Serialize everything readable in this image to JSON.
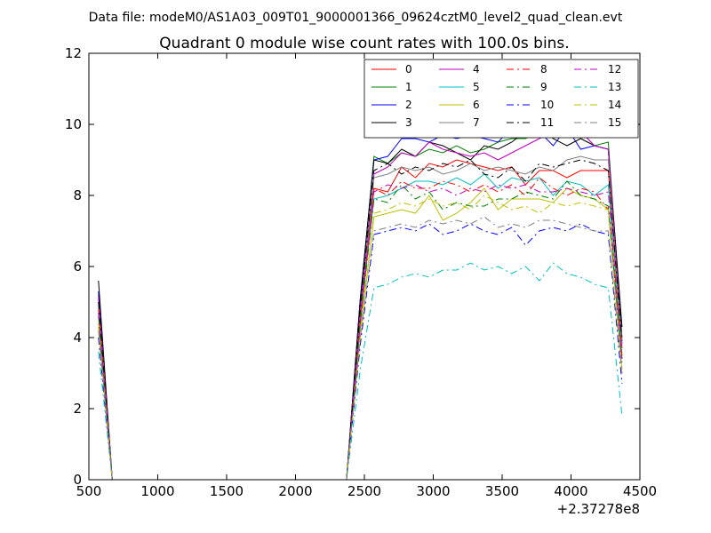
{
  "header": {
    "supertitle": "Data file: modeM0/AS1A03_009T01_9000001366_09624cztM0_level2_quad_clean.evt"
  },
  "chart_data": {
    "type": "line",
    "title": "Quadrant 0 module wise count rates with 100.0s bins.",
    "xlabel": "",
    "ylabel": "",
    "x_offset_label": "+2.37278e8",
    "xlim": [
      500,
      4500
    ],
    "ylim": [
      0,
      12
    ],
    "xticks": [
      500,
      1000,
      1500,
      2000,
      2500,
      3000,
      3500,
      4000,
      4500
    ],
    "yticks": [
      0,
      2,
      4,
      6,
      8,
      10,
      12
    ],
    "grid": false,
    "legend_position": "top-right",
    "legend_columns": 4,
    "x": [
      570,
      670,
      2370,
      2470,
      2570,
      2670,
      2770,
      2870,
      2970,
      3070,
      3170,
      3270,
      3370,
      3470,
      3570,
      3670,
      3770,
      3870,
      3970,
      4070,
      4170,
      4270,
      4370
    ],
    "series": [
      {
        "name": "0",
        "color": "#ff0000",
        "dash": "solid",
        "values": [
          5.2,
          0,
          0,
          4.5,
          8.2,
          8.1,
          8.8,
          8.5,
          8.9,
          8.8,
          9.0,
          8.9,
          8.8,
          8.7,
          8.8,
          8.3,
          8.7,
          8.7,
          8.5,
          8.7,
          8.7,
          8.7,
          3.7
        ]
      },
      {
        "name": "1",
        "color": "#008000",
        "dash": "solid",
        "values": [
          5.0,
          0,
          0,
          5.0,
          9.1,
          8.9,
          9.2,
          9.1,
          9.3,
          9.2,
          9.4,
          9.2,
          9.3,
          9.5,
          9.6,
          9.6,
          9.8,
          9.8,
          9.7,
          9.8,
          9.4,
          9.5,
          4.0
        ]
      },
      {
        "name": "2",
        "color": "#0000ff",
        "dash": "solid",
        "values": [
          5.3,
          0,
          0,
          5.1,
          9.0,
          9.1,
          9.6,
          9.6,
          9.5,
          9.7,
          9.6,
          9.7,
          9.6,
          9.5,
          9.9,
          9.7,
          9.8,
          9.4,
          9.9,
          9.3,
          9.4,
          9.3,
          3.9
        ]
      },
      {
        "name": "3",
        "color": "#000000",
        "dash": "solid",
        "values": [
          5.6,
          0,
          0,
          5.1,
          9.0,
          8.9,
          9.3,
          9.1,
          9.5,
          9.4,
          9.2,
          9.0,
          9.4,
          9.3,
          9.5,
          9.8,
          9.9,
          9.6,
          9.4,
          9.6,
          9.4,
          9.3,
          4.3
        ]
      },
      {
        "name": "4",
        "color": "#bf00bf",
        "dash": "solid",
        "values": [
          5.1,
          0,
          0,
          4.8,
          8.6,
          8.8,
          9.2,
          9.1,
          9.5,
          9.3,
          9.2,
          9.1,
          9.2,
          9.0,
          9.2,
          9.4,
          9.6,
          9.8,
          9.7,
          9.8,
          9.4,
          9.3,
          3.8
        ]
      },
      {
        "name": "5",
        "color": "#00bfbf",
        "dash": "solid",
        "values": [
          4.9,
          0,
          0,
          4.6,
          7.9,
          8.0,
          8.2,
          8.4,
          8.4,
          8.3,
          8.5,
          8.3,
          8.6,
          8.2,
          8.5,
          8.4,
          8.5,
          8.0,
          8.4,
          8.3,
          8.0,
          8.3,
          3.4
        ]
      },
      {
        "name": "6",
        "color": "#bfbf00",
        "dash": "solid",
        "values": [
          4.4,
          0,
          0,
          4.2,
          7.4,
          7.5,
          7.6,
          7.5,
          8.0,
          7.3,
          7.5,
          7.8,
          8.2,
          7.6,
          7.9,
          7.9,
          7.9,
          7.8,
          8.2,
          8.0,
          7.9,
          7.6,
          3.1
        ]
      },
      {
        "name": "7",
        "color": "#808080",
        "dash": "solid",
        "values": [
          5.0,
          0,
          0,
          4.6,
          8.5,
          8.6,
          8.8,
          8.7,
          8.8,
          8.6,
          8.7,
          8.9,
          8.7,
          8.8,
          8.7,
          8.6,
          8.8,
          8.7,
          9.0,
          9.1,
          9.0,
          9.0,
          3.8
        ]
      },
      {
        "name": "8",
        "color": "#ff0000",
        "dash": "dashdot",
        "values": [
          4.8,
          0,
          0,
          4.5,
          8.2,
          8.0,
          8.4,
          8.2,
          8.2,
          8.4,
          8.3,
          8.1,
          8.3,
          8.1,
          8.3,
          8.0,
          8.5,
          8.2,
          8.0,
          8.2,
          8.1,
          7.6,
          3.5
        ]
      },
      {
        "name": "9",
        "color": "#008000",
        "dash": "dashdot",
        "values": [
          4.6,
          0,
          0,
          4.4,
          7.9,
          7.8,
          8.3,
          7.9,
          8.1,
          7.6,
          7.8,
          7.7,
          7.7,
          7.9,
          7.9,
          8.1,
          8.0,
          7.9,
          8.4,
          8.0,
          7.9,
          7.7,
          3.3
        ]
      },
      {
        "name": "10",
        "color": "#0000ff",
        "dash": "dashdot",
        "values": [
          4.0,
          0,
          0,
          3.8,
          6.9,
          7.0,
          7.1,
          7.0,
          7.2,
          6.9,
          7.0,
          7.2,
          7.0,
          6.9,
          7.1,
          6.6,
          7.0,
          7.1,
          7.0,
          7.2,
          7.0,
          6.9,
          2.7
        ]
      },
      {
        "name": "11",
        "color": "#000000",
        "dash": "dashdot",
        "values": [
          5.0,
          0,
          0,
          4.8,
          8.7,
          8.9,
          8.6,
          8.8,
          8.7,
          8.9,
          8.8,
          9.0,
          8.6,
          8.5,
          8.8,
          8.4,
          8.9,
          8.8,
          8.9,
          9.0,
          8.9,
          8.7,
          3.9
        ]
      },
      {
        "name": "12",
        "color": "#bf00bf",
        "dash": "dashdot",
        "values": [
          4.7,
          0,
          0,
          4.4,
          8.1,
          8.3,
          8.2,
          8.3,
          8.1,
          8.2,
          8.0,
          8.2,
          8.1,
          8.3,
          8.2,
          8.3,
          8.1,
          8.1,
          8.2,
          8.1,
          8.0,
          8.1,
          3.4
        ]
      },
      {
        "name": "13",
        "color": "#00bfbf",
        "dash": "dashdot",
        "values": [
          3.6,
          0,
          0,
          3.1,
          5.4,
          5.5,
          5.7,
          5.8,
          5.7,
          5.9,
          5.9,
          6.1,
          5.9,
          6.0,
          5.8,
          6.0,
          5.6,
          6.1,
          5.8,
          5.7,
          5.5,
          5.4,
          1.8
        ]
      },
      {
        "name": "14",
        "color": "#bfbf00",
        "dash": "dashdot",
        "values": [
          4.3,
          0,
          0,
          4.0,
          7.5,
          7.6,
          7.8,
          7.7,
          7.9,
          7.7,
          7.8,
          7.6,
          8.0,
          7.8,
          7.6,
          7.7,
          7.5,
          7.8,
          7.7,
          7.8,
          7.7,
          7.6,
          3.0
        ]
      },
      {
        "name": "15",
        "color": "#808080",
        "dash": "dashdot",
        "values": [
          4.2,
          0,
          0,
          4.0,
          7.0,
          7.1,
          7.2,
          7.1,
          7.3,
          7.2,
          7.3,
          7.2,
          7.4,
          7.1,
          7.2,
          7.1,
          7.3,
          7.3,
          7.2,
          7.1,
          7.0,
          7.0,
          3.0
        ]
      }
    ]
  }
}
